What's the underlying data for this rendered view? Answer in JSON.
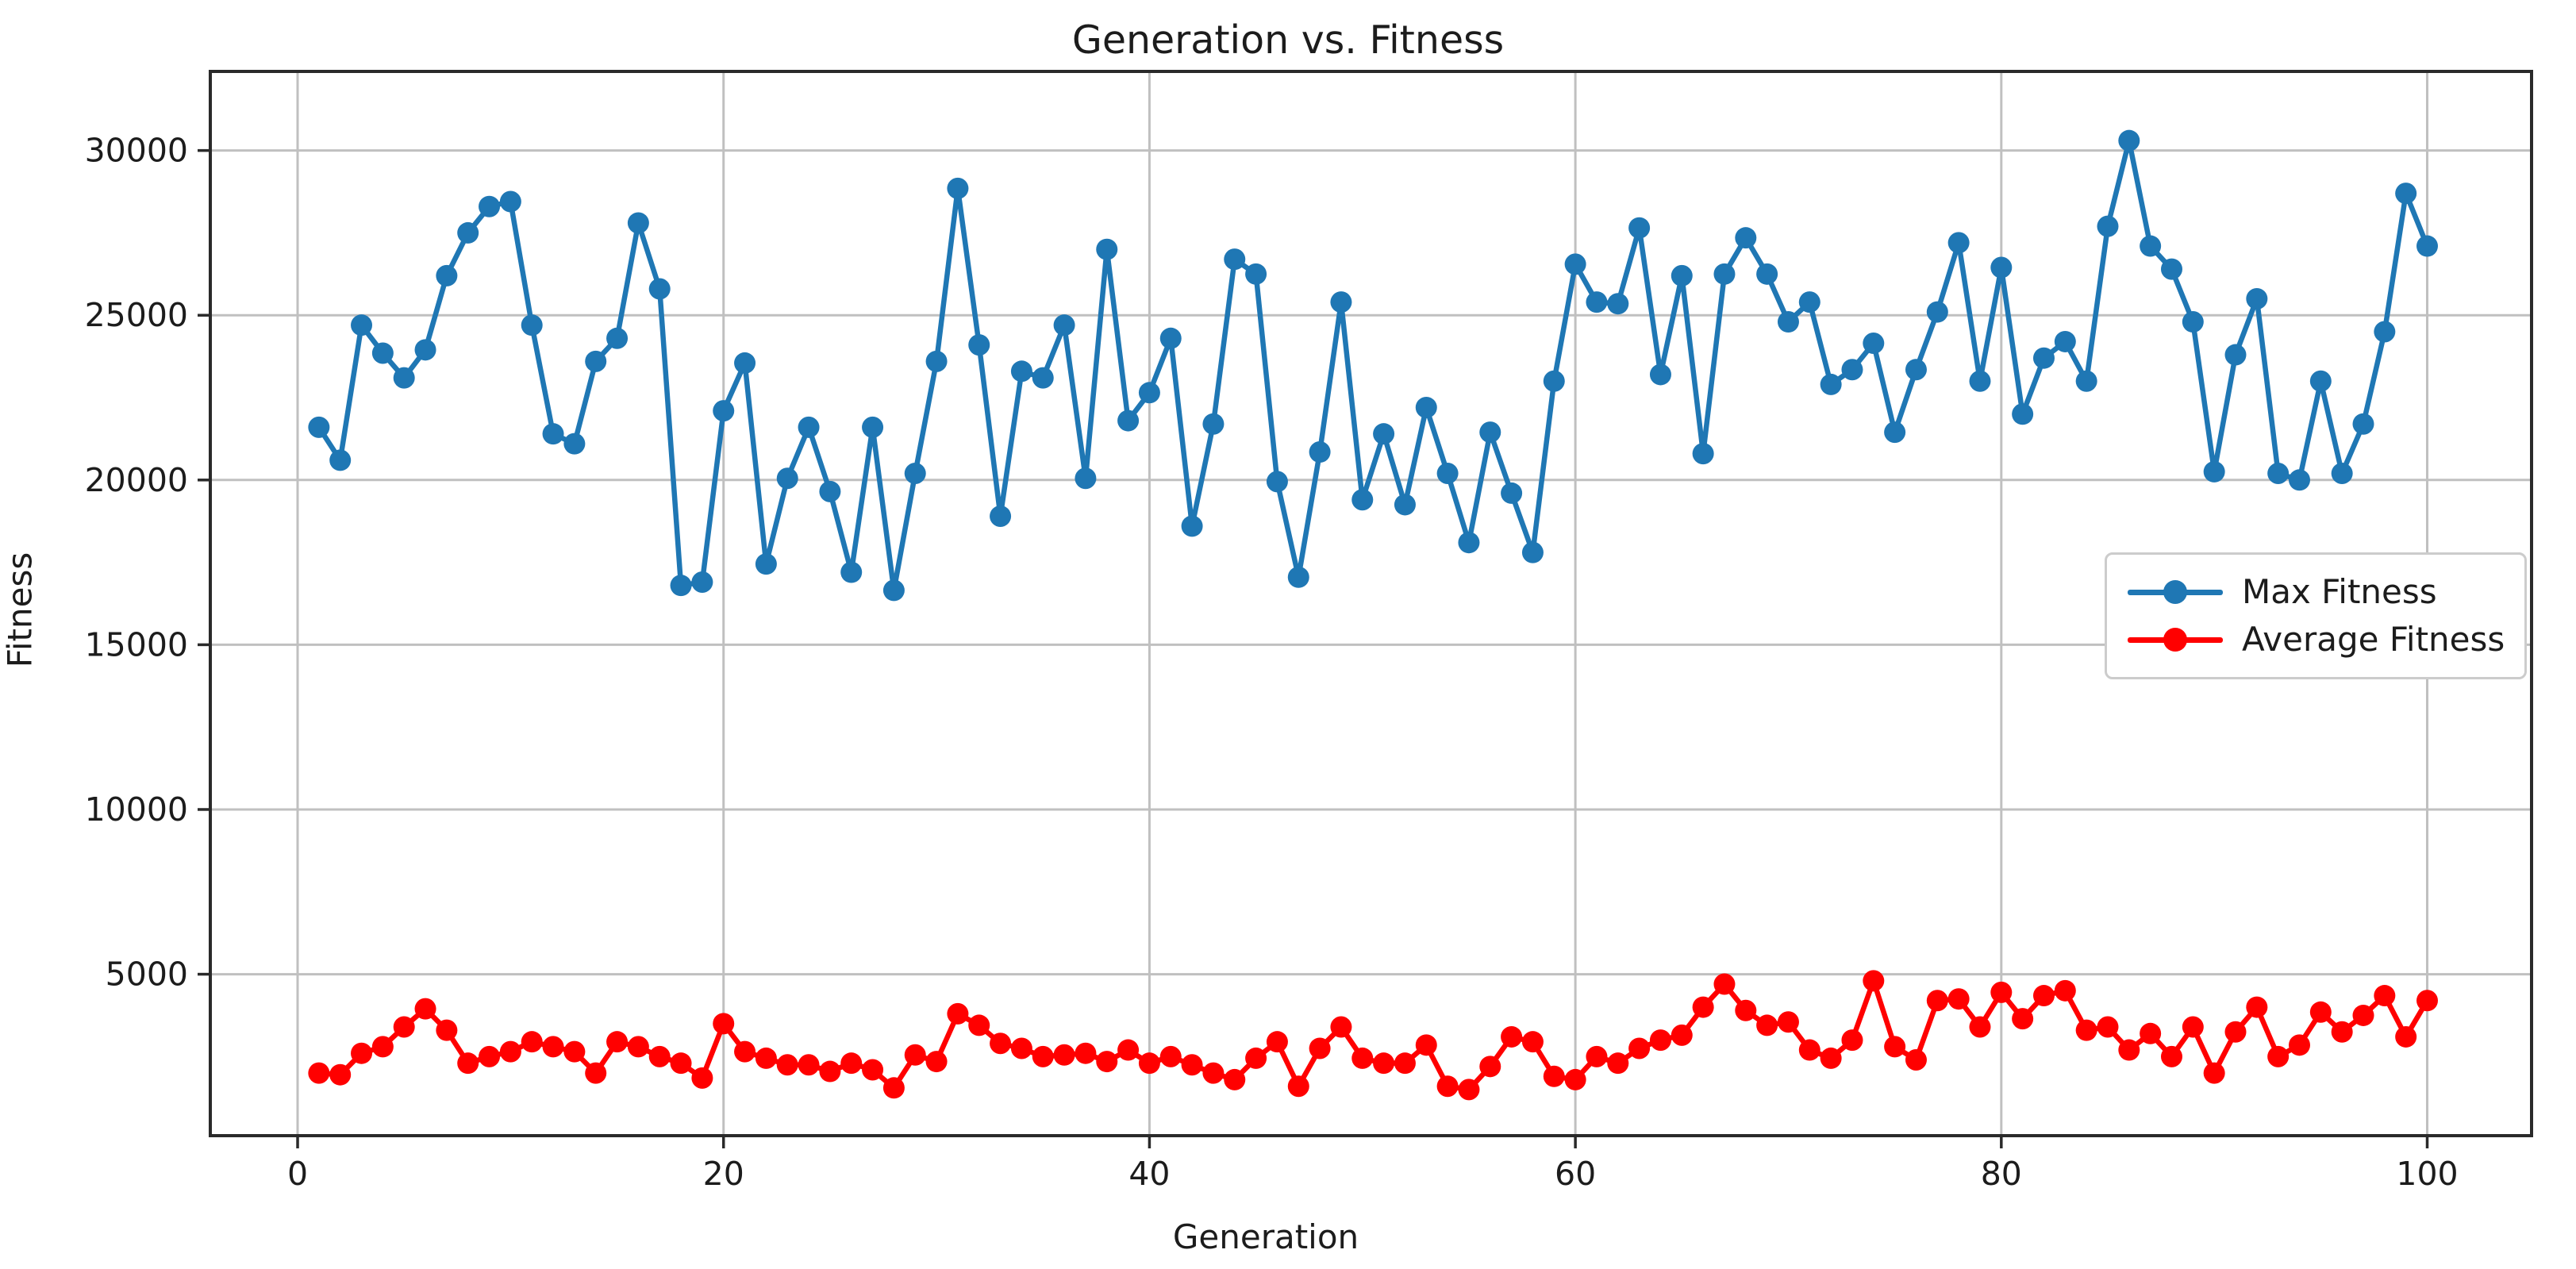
{
  "page": {
    "background": "#ffffff",
    "text_color": "#1c1c1c"
  },
  "chart_data": {
    "type": "line",
    "title": "Generation vs. Fitness",
    "xlabel": "Generation",
    "ylabel": "Fitness",
    "grid": true,
    "grid_color": "#c0c0c0",
    "spine_color": "#2a2a2a",
    "legend_position": "center right",
    "xlim": [
      -4.1,
      104.9
    ],
    "ylim": [
      100,
      32400
    ],
    "xticks": [
      0,
      20,
      40,
      60,
      80,
      100
    ],
    "yticks": [
      5000,
      10000,
      15000,
      20000,
      25000,
      30000
    ],
    "x": [
      1,
      2,
      3,
      4,
      5,
      6,
      7,
      8,
      9,
      10,
      11,
      12,
      13,
      14,
      15,
      16,
      17,
      18,
      19,
      20,
      21,
      22,
      23,
      24,
      25,
      26,
      27,
      28,
      29,
      30,
      31,
      32,
      33,
      34,
      35,
      36,
      37,
      38,
      39,
      40,
      41,
      42,
      43,
      44,
      45,
      46,
      47,
      48,
      49,
      50,
      51,
      52,
      53,
      54,
      55,
      56,
      57,
      58,
      59,
      60,
      61,
      62,
      63,
      64,
      65,
      66,
      67,
      68,
      69,
      70,
      71,
      72,
      73,
      74,
      75,
      76,
      77,
      78,
      79,
      80,
      81,
      82,
      83,
      84,
      85,
      86,
      87,
      88,
      89,
      90,
      91,
      92,
      93,
      94,
      95,
      96,
      97,
      98,
      99,
      100
    ],
    "series": [
      {
        "name": "Max Fitness",
        "color": "#1f77b4",
        "marker": "o",
        "values": [
          21600,
          20600,
          24700,
          23850,
          23100,
          23950,
          26200,
          27500,
          28300,
          28450,
          24700,
          21400,
          21100,
          23600,
          24300,
          27800,
          25800,
          16800,
          16900,
          22100,
          23550,
          17450,
          20050,
          21600,
          19650,
          17200,
          21600,
          16650,
          20200,
          23600,
          28850,
          24100,
          18900,
          23300,
          23100,
          24700,
          20050,
          27000,
          21800,
          22650,
          24300,
          18600,
          21700,
          26700,
          26250,
          19950,
          17050,
          20850,
          25400,
          19400,
          21400,
          19250,
          22200,
          20200,
          18100,
          21450,
          19600,
          17800,
          23000,
          26550,
          25400,
          25350,
          27650,
          23200,
          26200,
          20800,
          26250,
          27350,
          26250,
          24800,
          25400,
          22900,
          23350,
          24150,
          21450,
          23350,
          25100,
          27200,
          23000,
          26450,
          22000,
          23700,
          24200,
          23000,
          27700,
          30300,
          27100,
          26400,
          24800,
          20250,
          23800,
          25500,
          20200,
          20000,
          23000,
          20200,
          21700,
          24500,
          28700,
          27100
        ]
      },
      {
        "name": "Average Fitness",
        "color": "#ff0000",
        "marker": "o",
        "values": [
          2000,
          1950,
          2600,
          2800,
          3400,
          3950,
          3300,
          2300,
          2500,
          2650,
          2950,
          2800,
          2650,
          2000,
          2950,
          2800,
          2500,
          2300,
          1850,
          3500,
          2650,
          2450,
          2250,
          2250,
          2050,
          2300,
          2100,
          1550,
          2550,
          2350,
          3800,
          3450,
          2900,
          2750,
          2500,
          2550,
          2600,
          2350,
          2700,
          2300,
          2500,
          2250,
          2000,
          1800,
          2450,
          2950,
          1600,
          2750,
          3400,
          2450,
          2300,
          2300,
          2850,
          1600,
          1500,
          2200,
          3100,
          2950,
          1900,
          1800,
          2500,
          2300,
          2750,
          3000,
          3150,
          4000,
          4700,
          3900,
          3450,
          3550,
          2700,
          2450,
          3000,
          4800,
          2800,
          2400,
          4200,
          4250,
          3400,
          4450,
          3650,
          4350,
          4500,
          3300,
          3400,
          2700,
          3200,
          2500,
          3400,
          2000,
          3250,
          4000,
          2500,
          2850,
          3850,
          3250,
          3750,
          4350,
          3100,
          4200
        ]
      }
    ]
  },
  "legend": {
    "items": [
      {
        "label": "Max Fitness",
        "color": "#1f77b4"
      },
      {
        "label": "Average Fitness",
        "color": "#ff0000"
      }
    ]
  }
}
